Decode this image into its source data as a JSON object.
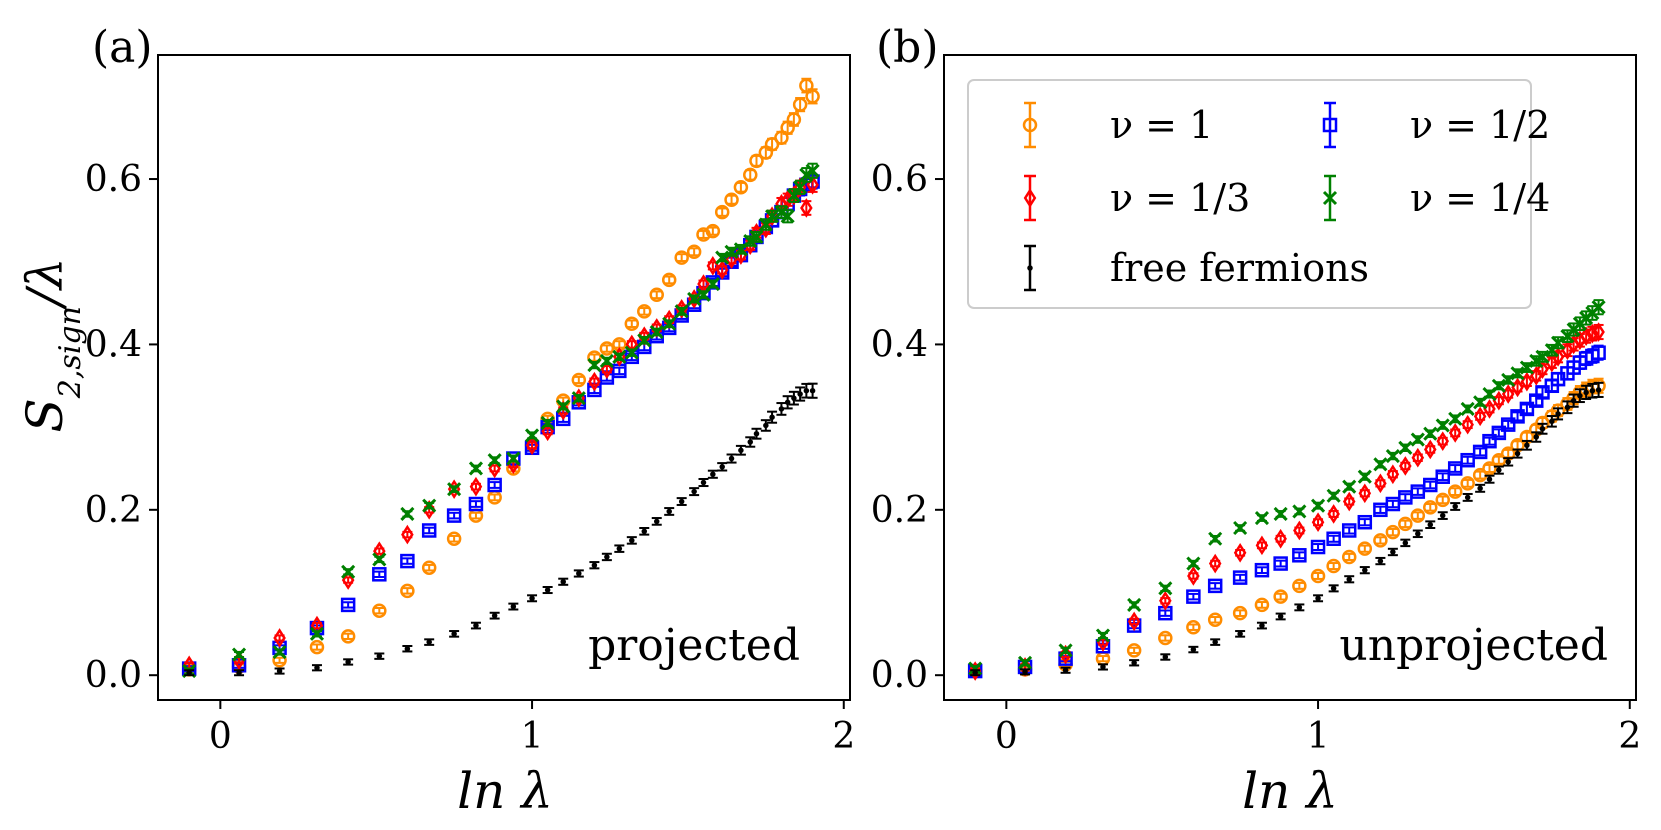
{
  "figure": {
    "ylabel": "S",
    "ylabel_sub": "2,sign",
    "ylabel_tail": "/λ",
    "xlabel": "ln λ",
    "legend": [
      {
        "key": "nu1",
        "label": "ν = 1",
        "color": "#ff8c00",
        "marker": "circle"
      },
      {
        "key": "nu12",
        "label": "ν = 1/2",
        "color": "#0000ff",
        "marker": "square"
      },
      {
        "key": "nu13",
        "label": "ν = 1/3",
        "color": "#ff0000",
        "marker": "diamond"
      },
      {
        "key": "nu14",
        "label": "ν = 1/4",
        "color": "#008000",
        "marker": "x"
      },
      {
        "key": "free",
        "label": "free fermions",
        "color": "#000000",
        "marker": "dot"
      }
    ]
  },
  "chart_data": [
    {
      "type": "scatter",
      "panel_label": "(a)",
      "annotation": "projected",
      "xlim": [
        -0.2,
        2.02
      ],
      "ylim": [
        -0.03,
        0.75
      ],
      "xticks": [
        0,
        1,
        2
      ],
      "yticks": [
        0.0,
        0.2,
        0.4,
        0.6
      ],
      "x": [
        -0.1,
        0.06,
        0.19,
        0.31,
        0.41,
        0.51,
        0.6,
        0.67,
        0.75,
        0.82,
        0.88,
        0.94,
        1.0,
        1.05,
        1.1,
        1.15,
        1.2,
        1.24,
        1.28,
        1.32,
        1.36,
        1.4,
        1.44,
        1.48,
        1.52,
        1.55,
        1.58,
        1.61,
        1.64,
        1.67,
        1.7,
        1.72,
        1.75,
        1.77,
        1.8,
        1.82,
        1.84,
        1.86,
        1.88,
        1.9
      ],
      "series": [
        {
          "name": "ν = 1",
          "values": [
            0.007,
            0.01,
            0.018,
            0.034,
            0.047,
            0.078,
            0.102,
            0.13,
            0.165,
            0.193,
            0.215,
            0.25,
            0.278,
            0.31,
            0.332,
            0.357,
            0.384,
            0.395,
            0.4,
            0.425,
            0.44,
            0.46,
            0.478,
            0.505,
            0.512,
            0.533,
            0.537,
            0.56,
            0.575,
            0.59,
            0.605,
            0.622,
            0.632,
            0.642,
            0.65,
            0.662,
            0.672,
            0.69,
            0.713,
            0.7
          ]
        },
        {
          "name": "ν = 1/2",
          "values": [
            0.008,
            0.012,
            0.033,
            0.057,
            0.085,
            0.122,
            0.138,
            0.175,
            0.193,
            0.207,
            0.23,
            0.262,
            0.275,
            0.3,
            0.31,
            0.33,
            0.345,
            0.36,
            0.368,
            0.385,
            0.397,
            0.41,
            0.42,
            0.435,
            0.448,
            0.462,
            0.475,
            0.487,
            0.5,
            0.508,
            0.52,
            0.53,
            0.542,
            0.55,
            0.56,
            0.57,
            0.58,
            0.588,
            0.593,
            0.597
          ]
        },
        {
          "name": "ν = 1/3",
          "values": [
            0.012,
            0.018,
            0.045,
            0.06,
            0.115,
            0.15,
            0.17,
            0.2,
            0.225,
            0.228,
            0.25,
            0.255,
            0.278,
            0.295,
            0.32,
            0.335,
            0.355,
            0.37,
            0.385,
            0.4,
            0.41,
            0.42,
            0.43,
            0.443,
            0.455,
            0.473,
            0.495,
            0.49,
            0.503,
            0.508,
            0.52,
            0.535,
            0.54,
            0.555,
            0.57,
            0.575,
            0.58,
            0.59,
            0.565,
            0.593
          ]
        },
        {
          "name": "ν = 1/4",
          "values": [
            0.005,
            0.025,
            0.028,
            0.05,
            0.125,
            0.14,
            0.195,
            0.205,
            0.225,
            0.25,
            0.26,
            0.262,
            0.29,
            0.305,
            0.325,
            0.335,
            0.375,
            0.38,
            0.385,
            0.39,
            0.405,
            0.415,
            0.425,
            0.44,
            0.455,
            0.46,
            0.473,
            0.505,
            0.512,
            0.515,
            0.525,
            0.53,
            0.545,
            0.555,
            0.56,
            0.555,
            0.58,
            0.59,
            0.605,
            0.61
          ]
        },
        {
          "name": "free fermions",
          "values": [
            0.003,
            0.003,
            0.005,
            0.009,
            0.016,
            0.023,
            0.032,
            0.04,
            0.05,
            0.06,
            0.072,
            0.083,
            0.093,
            0.103,
            0.113,
            0.123,
            0.133,
            0.143,
            0.153,
            0.163,
            0.174,
            0.186,
            0.198,
            0.21,
            0.222,
            0.233,
            0.243,
            0.252,
            0.262,
            0.272,
            0.282,
            0.292,
            0.302,
            0.312,
            0.322,
            0.33,
            0.335,
            0.34,
            0.344,
            0.344
          ]
        }
      ]
    },
    {
      "type": "scatter",
      "panel_label": "(b)",
      "annotation": "unprojected",
      "xlim": [
        -0.2,
        2.02
      ],
      "ylim": [
        -0.03,
        0.75
      ],
      "xticks": [
        0,
        1,
        2
      ],
      "yticks": [
        0.0,
        0.2,
        0.4,
        0.6
      ],
      "legend_position": "top-left",
      "x": [
        -0.1,
        0.06,
        0.19,
        0.31,
        0.41,
        0.51,
        0.6,
        0.67,
        0.75,
        0.82,
        0.88,
        0.94,
        1.0,
        1.05,
        1.1,
        1.15,
        1.2,
        1.24,
        1.28,
        1.32,
        1.36,
        1.4,
        1.44,
        1.48,
        1.52,
        1.55,
        1.58,
        1.61,
        1.64,
        1.67,
        1.7,
        1.72,
        1.75,
        1.77,
        1.8,
        1.82,
        1.84,
        1.86,
        1.88,
        1.9
      ],
      "series": [
        {
          "name": "ν = 1",
          "values": [
            0.005,
            0.007,
            0.013,
            0.02,
            0.03,
            0.045,
            0.058,
            0.067,
            0.075,
            0.085,
            0.095,
            0.108,
            0.12,
            0.132,
            0.143,
            0.153,
            0.163,
            0.173,
            0.183,
            0.193,
            0.203,
            0.212,
            0.222,
            0.232,
            0.242,
            0.25,
            0.26,
            0.268,
            0.278,
            0.288,
            0.297,
            0.305,
            0.313,
            0.32,
            0.328,
            0.335,
            0.342,
            0.346,
            0.349,
            0.35
          ]
        },
        {
          "name": "ν = 1/2",
          "values": [
            0.005,
            0.01,
            0.02,
            0.035,
            0.06,
            0.075,
            0.095,
            0.108,
            0.118,
            0.127,
            0.135,
            0.145,
            0.155,
            0.165,
            0.175,
            0.185,
            0.2,
            0.207,
            0.215,
            0.222,
            0.23,
            0.24,
            0.25,
            0.26,
            0.27,
            0.283,
            0.293,
            0.303,
            0.313,
            0.322,
            0.332,
            0.342,
            0.35,
            0.358,
            0.365,
            0.372,
            0.378,
            0.383,
            0.386,
            0.39
          ]
        },
        {
          "name": "ν = 1/3",
          "values": [
            0.005,
            0.01,
            0.025,
            0.04,
            0.065,
            0.09,
            0.12,
            0.135,
            0.148,
            0.157,
            0.165,
            0.175,
            0.185,
            0.195,
            0.21,
            0.22,
            0.232,
            0.243,
            0.253,
            0.263,
            0.273,
            0.283,
            0.293,
            0.303,
            0.313,
            0.322,
            0.332,
            0.34,
            0.348,
            0.355,
            0.362,
            0.37,
            0.378,
            0.385,
            0.393,
            0.4,
            0.405,
            0.41,
            0.413,
            0.415
          ]
        },
        {
          "name": "ν = 1/4",
          "values": [
            0.008,
            0.015,
            0.03,
            0.048,
            0.085,
            0.105,
            0.135,
            0.165,
            0.178,
            0.19,
            0.195,
            0.198,
            0.205,
            0.217,
            0.228,
            0.24,
            0.255,
            0.265,
            0.275,
            0.285,
            0.292,
            0.302,
            0.31,
            0.322,
            0.33,
            0.34,
            0.35,
            0.357,
            0.365,
            0.372,
            0.38,
            0.385,
            0.393,
            0.402,
            0.41,
            0.418,
            0.425,
            0.432,
            0.438,
            0.445
          ]
        },
        {
          "name": "free fermions",
          "values": [
            0.003,
            0.004,
            0.006,
            0.01,
            0.015,
            0.022,
            0.031,
            0.04,
            0.05,
            0.06,
            0.071,
            0.082,
            0.093,
            0.105,
            0.116,
            0.127,
            0.138,
            0.149,
            0.16,
            0.171,
            0.182,
            0.193,
            0.204,
            0.215,
            0.226,
            0.237,
            0.248,
            0.258,
            0.268,
            0.278,
            0.288,
            0.298,
            0.307,
            0.316,
            0.324,
            0.332,
            0.338,
            0.342,
            0.344,
            0.345
          ]
        }
      ]
    }
  ]
}
